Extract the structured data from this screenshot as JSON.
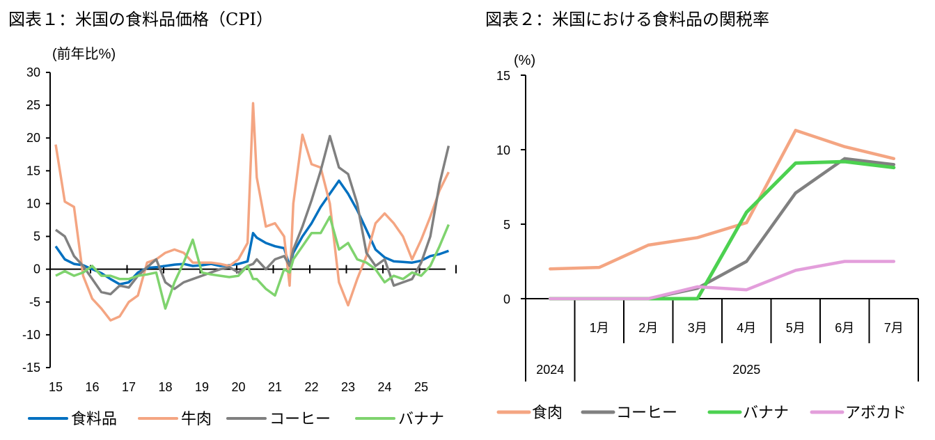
{
  "chart_data": [
    {
      "type": "line",
      "title": "図表１：米国の食料品価格（CPI）",
      "ylabel": "(前年比%)",
      "xlabel": "",
      "ylim": [
        -15,
        30
      ],
      "yticks": [
        30,
        25,
        20,
        15,
        10,
        5,
        0,
        -5,
        -10,
        -15
      ],
      "xlim": [
        2015.0,
        2025.75
      ],
      "xtick_labels": [
        "15",
        "16",
        "17",
        "18",
        "19",
        "20",
        "21",
        "22",
        "23",
        "24",
        "25"
      ],
      "legend": "bottom",
      "grid": false,
      "x": [
        2015.0,
        2015.25,
        2015.5,
        2015.75,
        2016.0,
        2016.25,
        2016.5,
        2016.75,
        2017.0,
        2017.25,
        2017.5,
        2017.75,
        2018.0,
        2018.25,
        2018.5,
        2018.75,
        2019.0,
        2019.25,
        2019.5,
        2019.75,
        2020.0,
        2020.25,
        2020.4,
        2020.5,
        2020.75,
        2021.0,
        2021.25,
        2021.4,
        2021.5,
        2021.75,
        2022.0,
        2022.25,
        2022.5,
        2022.75,
        2023.0,
        2023.25,
        2023.5,
        2023.75,
        2024.0,
        2024.25,
        2024.5,
        2024.75,
        2025.0,
        2025.25,
        2025.5,
        2025.75
      ],
      "series": [
        {
          "name": "食料品",
          "color": "#0070C0",
          "values": [
            3.5,
            1.5,
            0.8,
            0.6,
            0.0,
            -0.6,
            -1.5,
            -2.3,
            -2.0,
            -0.5,
            0.2,
            0.3,
            0.5,
            0.7,
            0.8,
            0.5,
            0.6,
            0.8,
            0.5,
            0.6,
            0.8,
            1.2,
            5.5,
            4.8,
            4.0,
            3.5,
            3.2,
            0.5,
            2.5,
            5.0,
            7.0,
            9.5,
            11.5,
            13.5,
            11.5,
            9.0,
            6.0,
            3.0,
            1.8,
            1.2,
            1.1,
            1.0,
            1.3,
            2.0,
            2.3,
            2.8
          ]
        },
        {
          "name": "牛肉",
          "color": "#F4A582",
          "values": [
            19.0,
            10.3,
            9.5,
            -1.0,
            -4.5,
            -6.0,
            -7.8,
            -7.2,
            -5.0,
            -4.0,
            1.0,
            1.5,
            2.5,
            3.0,
            2.5,
            1.0,
            1.0,
            1.0,
            0.8,
            0.5,
            1.5,
            4.0,
            25.3,
            14.0,
            6.5,
            7.0,
            5.0,
            -2.5,
            10.0,
            20.5,
            16.0,
            15.5,
            10.0,
            -2.0,
            -5.5,
            -1.5,
            2.0,
            7.0,
            8.5,
            7.0,
            5.0,
            1.5,
            4.5,
            8.0,
            12.0,
            14.8
          ]
        },
        {
          "name": "コーヒー",
          "color": "#808080",
          "values": [
            6.0,
            5.0,
            2.0,
            0.5,
            -1.5,
            -3.5,
            -3.8,
            -2.5,
            -2.8,
            -1.0,
            0.3,
            1.5,
            -2.0,
            -3.0,
            -2.0,
            -1.5,
            -1.0,
            -0.5,
            0.0,
            0.3,
            -0.5,
            0.5,
            0.8,
            1.5,
            0.0,
            1.5,
            2.0,
            0.5,
            3.0,
            6.5,
            10.5,
            15.0,
            20.3,
            15.5,
            14.5,
            10.0,
            2.5,
            0.5,
            1.5,
            -2.5,
            -2.0,
            -1.5,
            1.0,
            5.0,
            13.0,
            18.8
          ]
        },
        {
          "name": "バナナ",
          "color": "#7FD36E",
          "values": [
            -1.0,
            -0.3,
            -1.0,
            -0.5,
            0.5,
            -1.0,
            -1.0,
            -1.5,
            -1.5,
            -1.0,
            -0.8,
            -0.5,
            -6.0,
            -2.0,
            1.0,
            4.5,
            -0.5,
            -0.8,
            -1.0,
            -1.2,
            -1.0,
            0.5,
            -1.5,
            -1.5,
            -3.0,
            -4.0,
            0.0,
            -0.5,
            1.5,
            3.5,
            5.5,
            5.5,
            8.0,
            3.0,
            4.0,
            1.5,
            1.0,
            0.0,
            -2.0,
            -1.0,
            -1.5,
            -0.5,
            -1.0,
            0.5,
            3.5,
            6.8
          ]
        }
      ]
    },
    {
      "type": "line",
      "title": "図表２：米国における食料品の関税率",
      "ylabel": "(%)",
      "xlabel": "",
      "ylim": [
        0,
        15
      ],
      "yticks": [
        15,
        10,
        5,
        0
      ],
      "categories": [
        "",
        "1月",
        "2月",
        "3月",
        "4月",
        "5月",
        "6月",
        "7月"
      ],
      "year_groups": [
        {
          "label": "2024",
          "span": 1
        },
        {
          "label": "2025",
          "span": 7
        }
      ],
      "legend": "bottom",
      "grid": false,
      "series": [
        {
          "name": "食肉",
          "color": "#F4A582",
          "values": [
            2.0,
            2.1,
            3.6,
            4.1,
            5.1,
            11.3,
            10.2,
            9.4
          ]
        },
        {
          "name": "コーヒー",
          "color": "#808080",
          "values": [
            0.0,
            0.0,
            0.0,
            0.7,
            2.5,
            7.1,
            9.4,
            9.0
          ]
        },
        {
          "name": "バナナ",
          "color": "#4CD150",
          "values": [
            0.0,
            0.0,
            0.0,
            0.0,
            5.8,
            9.1,
            9.2,
            8.8
          ]
        },
        {
          "name": "アボカド",
          "color": "#E39EDB",
          "values": [
            0.0,
            0.0,
            0.0,
            0.8,
            0.6,
            1.9,
            2.5,
            2.5
          ]
        }
      ]
    }
  ]
}
